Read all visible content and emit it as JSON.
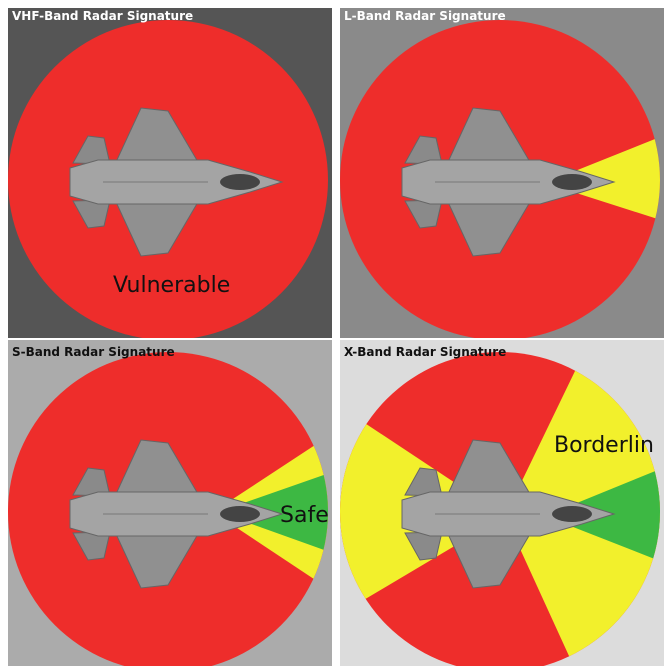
{
  "panels": [
    {
      "title": "VHF-Band Radar Signature",
      "label": "Vulnerable"
    },
    {
      "title": "L-Band Radar Signature"
    },
    {
      "title": "S-Band Radar Signature",
      "label": "Safe"
    },
    {
      "title": "X-Band Radar Signature",
      "label": "Borderlin"
    }
  ]
}
